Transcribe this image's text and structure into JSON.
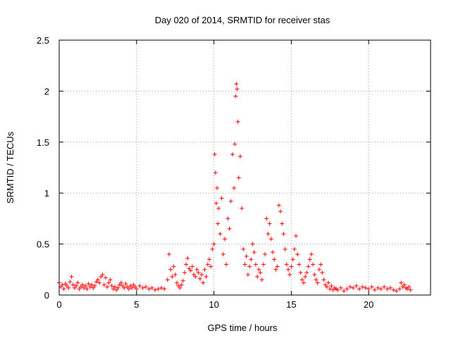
{
  "chart_data": {
    "type": "scatter",
    "title": "Day 020 of 2014, SRMTID for receiver stas",
    "xlabel": "GPS time / hours",
    "ylabel": "SRMTID / TECUs",
    "xlim": [
      0,
      24
    ],
    "ylim": [
      0,
      2.5
    ],
    "xticks": [
      0,
      5,
      10,
      15,
      20
    ],
    "xtick_labels": [
      "0",
      "5",
      "10",
      "15",
      "20"
    ],
    "yticks": [
      0,
      0.5,
      1,
      1.5,
      2,
      2.5
    ],
    "ytick_labels": [
      "0",
      "0.5",
      "1",
      "1.5",
      "2",
      "2.5"
    ],
    "grid": true,
    "marker": "plus",
    "marker_color": "#ff0000",
    "series": [
      {
        "name": "stas",
        "points": [
          [
            0.0,
            0.12
          ],
          [
            0.1,
            0.08
          ],
          [
            0.2,
            0.1
          ],
          [
            0.3,
            0.06
          ],
          [
            0.4,
            0.11
          ],
          [
            0.5,
            0.09
          ],
          [
            0.6,
            0.07
          ],
          [
            0.7,
            0.13
          ],
          [
            0.8,
            0.18
          ],
          [
            0.9,
            0.1
          ],
          [
            1.0,
            0.07
          ],
          [
            1.1,
            0.09
          ],
          [
            1.2,
            0.12
          ],
          [
            1.3,
            0.06
          ],
          [
            1.4,
            0.08
          ],
          [
            1.5,
            0.1
          ],
          [
            1.6,
            0.07
          ],
          [
            1.7,
            0.09
          ],
          [
            1.8,
            0.06
          ],
          [
            1.9,
            0.11
          ],
          [
            2.0,
            0.08
          ],
          [
            2.1,
            0.1
          ],
          [
            2.2,
            0.07
          ],
          [
            2.3,
            0.09
          ],
          [
            2.4,
            0.13
          ],
          [
            2.5,
            0.15
          ],
          [
            2.6,
            0.12
          ],
          [
            2.7,
            0.18
          ],
          [
            2.8,
            0.2
          ],
          [
            2.9,
            0.1
          ],
          [
            3.0,
            0.17
          ],
          [
            3.1,
            0.08
          ],
          [
            3.2,
            0.12
          ],
          [
            3.3,
            0.15
          ],
          [
            3.4,
            0.09
          ],
          [
            3.5,
            0.06
          ],
          [
            3.6,
            0.08
          ],
          [
            3.7,
            0.05
          ],
          [
            3.8,
            0.07
          ],
          [
            3.9,
            0.1
          ],
          [
            4.0,
            0.12
          ],
          [
            4.1,
            0.09
          ],
          [
            4.2,
            0.07
          ],
          [
            4.3,
            0.11
          ],
          [
            4.4,
            0.08
          ],
          [
            4.5,
            0.06
          ],
          [
            4.6,
            0.09
          ],
          [
            4.7,
            0.07
          ],
          [
            4.8,
            0.1
          ],
          [
            4.9,
            0.08
          ],
          [
            5.0,
            0.06
          ],
          [
            5.2,
            0.09
          ],
          [
            5.4,
            0.07
          ],
          [
            5.6,
            0.08
          ],
          [
            5.8,
            0.06
          ],
          [
            6.0,
            0.07
          ],
          [
            6.2,
            0.05
          ],
          [
            6.4,
            0.06
          ],
          [
            6.6,
            0.07
          ],
          [
            6.8,
            0.06
          ],
          [
            7.0,
            0.15
          ],
          [
            7.1,
            0.4
          ],
          [
            7.2,
            0.25
          ],
          [
            7.3,
            0.18
          ],
          [
            7.4,
            0.28
          ],
          [
            7.5,
            0.2
          ],
          [
            7.6,
            0.12
          ],
          [
            7.7,
            0.09
          ],
          [
            7.8,
            0.07
          ],
          [
            7.9,
            0.1
          ],
          [
            8.0,
            0.14
          ],
          [
            8.1,
            0.22
          ],
          [
            8.2,
            0.3
          ],
          [
            8.3,
            0.36
          ],
          [
            8.4,
            0.26
          ],
          [
            8.5,
            0.24
          ],
          [
            8.6,
            0.28
          ],
          [
            8.7,
            0.2
          ],
          [
            8.8,
            0.18
          ],
          [
            8.9,
            0.25
          ],
          [
            9.0,
            0.22
          ],
          [
            9.1,
            0.16
          ],
          [
            9.2,
            0.2
          ],
          [
            9.3,
            0.12
          ],
          [
            9.4,
            0.25
          ],
          [
            9.5,
            0.18
          ],
          [
            9.6,
            0.3
          ],
          [
            9.7,
            0.35
          ],
          [
            9.8,
            0.28
          ],
          [
            9.9,
            0.45
          ],
          [
            10.0,
            0.5
          ],
          [
            10.05,
            1.38
          ],
          [
            10.1,
            1.2
          ],
          [
            10.15,
            0.9
          ],
          [
            10.2,
            1.05
          ],
          [
            10.25,
            0.7
          ],
          [
            10.3,
            0.85
          ],
          [
            10.4,
            0.6
          ],
          [
            10.5,
            0.95
          ],
          [
            10.6,
            0.4
          ],
          [
            10.7,
            0.55
          ],
          [
            10.8,
            0.3
          ],
          [
            10.9,
            0.75
          ],
          [
            11.0,
            0.65
          ],
          [
            11.1,
            0.92
          ],
          [
            11.2,
            1.38
          ],
          [
            11.3,
            1.05
          ],
          [
            11.35,
            1.48
          ],
          [
            11.4,
            1.95
          ],
          [
            11.45,
            2.07
          ],
          [
            11.5,
            2.02
          ],
          [
            11.55,
            1.7
          ],
          [
            11.6,
            1.15
          ],
          [
            11.7,
            1.36
          ],
          [
            11.8,
            0.85
          ],
          [
            11.9,
            0.45
          ],
          [
            12.0,
            0.3
          ],
          [
            12.1,
            0.38
          ],
          [
            12.2,
            0.2
          ],
          [
            12.3,
            0.28
          ],
          [
            12.4,
            0.35
          ],
          [
            12.5,
            0.5
          ],
          [
            12.6,
            0.42
          ],
          [
            12.7,
            0.3
          ],
          [
            12.8,
            0.18
          ],
          [
            12.9,
            0.25
          ],
          [
            13.0,
            0.22
          ],
          [
            13.1,
            0.15
          ],
          [
            13.2,
            0.3
          ],
          [
            13.3,
            0.4
          ],
          [
            13.4,
            0.75
          ],
          [
            13.5,
            0.6
          ],
          [
            13.6,
            0.7
          ],
          [
            13.7,
            0.55
          ],
          [
            13.8,
            0.42
          ],
          [
            13.9,
            0.35
          ],
          [
            14.0,
            0.25
          ],
          [
            14.1,
            0.28
          ],
          [
            14.2,
            0.88
          ],
          [
            14.3,
            0.82
          ],
          [
            14.4,
            0.7
          ],
          [
            14.5,
            0.6
          ],
          [
            14.6,
            0.45
          ],
          [
            14.7,
            0.3
          ],
          [
            14.8,
            0.25
          ],
          [
            14.9,
            0.2
          ],
          [
            15.0,
            0.28
          ],
          [
            15.1,
            0.35
          ],
          [
            15.2,
            0.45
          ],
          [
            15.3,
            0.58
          ],
          [
            15.4,
            0.4
          ],
          [
            15.5,
            0.3
          ],
          [
            15.6,
            0.22
          ],
          [
            15.7,
            0.15
          ],
          [
            15.8,
            0.12
          ],
          [
            15.9,
            0.18
          ],
          [
            16.0,
            0.22
          ],
          [
            16.1,
            0.28
          ],
          [
            16.2,
            0.35
          ],
          [
            16.3,
            0.4
          ],
          [
            16.4,
            0.3
          ],
          [
            16.5,
            0.2
          ],
          [
            16.6,
            0.15
          ],
          [
            16.7,
            0.12
          ],
          [
            16.8,
            0.25
          ],
          [
            16.9,
            0.3
          ],
          [
            17.0,
            0.22
          ],
          [
            17.1,
            0.15
          ],
          [
            17.2,
            0.1
          ],
          [
            17.3,
            0.08
          ],
          [
            17.4,
            0.12
          ],
          [
            17.5,
            0.06
          ],
          [
            17.6,
            0.09
          ],
          [
            17.7,
            0.05
          ],
          [
            17.8,
            0.07
          ],
          [
            17.9,
            0.06
          ],
          [
            18.0,
            0.05
          ],
          [
            18.2,
            0.07
          ],
          [
            18.4,
            0.04
          ],
          [
            18.6,
            0.06
          ],
          [
            18.8,
            0.08
          ],
          [
            19.0,
            0.07
          ],
          [
            19.2,
            0.09
          ],
          [
            19.4,
            0.06
          ],
          [
            19.6,
            0.08
          ],
          [
            19.8,
            0.07
          ],
          [
            20.0,
            0.06
          ],
          [
            20.2,
            0.08
          ],
          [
            20.4,
            0.05
          ],
          [
            20.6,
            0.07
          ],
          [
            20.8,
            0.06
          ],
          [
            21.0,
            0.08
          ],
          [
            21.2,
            0.06
          ],
          [
            21.4,
            0.07
          ],
          [
            21.6,
            0.05
          ],
          [
            21.8,
            0.04
          ],
          [
            22.0,
            0.06
          ],
          [
            22.1,
            0.12
          ],
          [
            22.2,
            0.08
          ],
          [
            22.3,
            0.1
          ],
          [
            22.4,
            0.07
          ],
          [
            22.5,
            0.06
          ],
          [
            22.6,
            0.08
          ],
          [
            22.7,
            0.05
          ]
        ]
      }
    ]
  }
}
